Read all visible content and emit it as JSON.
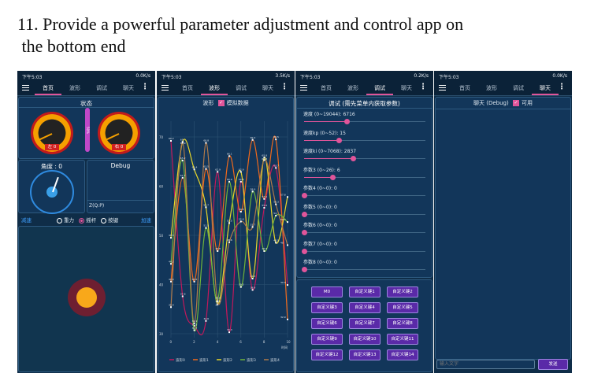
{
  "heading": {
    "line1": "11. Provide a powerful parameter adjustment and control app on",
    "line2": " the bottom end"
  },
  "tabs": [
    "首页",
    "波形",
    "调试",
    "聊天"
  ],
  "status_time": "下午5:03",
  "phones": {
    "home": {
      "net": "0.0K/s",
      "status_title": "状态",
      "left_gauge": "左 0",
      "right_gauge": "右 0",
      "bar_text": "50%",
      "angle_title": "角度 : 0",
      "debug_title": "Debug",
      "debug_text": "Z(Q:P)",
      "left_btn": "减速",
      "right_btn": "加速",
      "modes": [
        "重力",
        "摇杆",
        "按键"
      ],
      "selected_mode": 1
    },
    "wave": {
      "net": "3.5K/s",
      "title": "波形",
      "checkbox_label": "模拟数据",
      "checked": true
    },
    "debug": {
      "net": "0.2K/s",
      "title": "调试 (需先菜单内获取参数)",
      "params": [
        {
          "label": "速度 (0~19044): 6716",
          "value": 6716,
          "max": 19044
        },
        {
          "label": "速度kp (0~52): 15",
          "value": 15,
          "max": 52
        },
        {
          "label": "速度ki (0~7068): 2837",
          "value": 2837,
          "max": 7068
        },
        {
          "label": "参数3 (0~26): 6",
          "value": 6,
          "max": 26
        },
        {
          "label": "参数4 (0~0): 0",
          "value": 0,
          "max": 0
        },
        {
          "label": "参数5 (0~0): 0",
          "value": 0,
          "max": 0
        },
        {
          "label": "参数6 (0~0): 0",
          "value": 0,
          "max": 0
        },
        {
          "label": "参数7 (0~0): 0",
          "value": 0,
          "max": 0
        },
        {
          "label": "参数8 (0~0): 0",
          "value": 0,
          "max": 0
        }
      ],
      "buttons": [
        "M0",
        "自定义键1",
        "自定义键2",
        "自定义键3",
        "自定义键4",
        "自定义键5",
        "自定义键6",
        "自定义键7",
        "自定义键8",
        "自定义键9",
        "自定义键10",
        "自定义键11",
        "自定义键12",
        "自定义键13",
        "自定义键14"
      ]
    },
    "chat": {
      "net": "0.0K/s",
      "title": "聊天 (Debug)",
      "checkbox_label": "可用",
      "checked": true,
      "input_placeholder": "输入文字",
      "send": "发送"
    }
  },
  "chart_data": {
    "type": "line",
    "xlabel": "时间",
    "ylabel": "",
    "xlim": [
      0,
      10
    ],
    "ylim": [
      30,
      70
    ],
    "xticks": [
      0,
      2,
      4,
      6,
      8,
      10
    ],
    "yticks": [
      30,
      40,
      50,
      60,
      70
    ],
    "grid": true,
    "legend": "bottom",
    "x": [
      0,
      1,
      2,
      3,
      4,
      5,
      6,
      7,
      8,
      9,
      10
    ],
    "series": [
      {
        "name": "波形0",
        "color": "#c2185b",
        "values": [
          69.2,
          37.6,
          31.6,
          32.6,
          62.9,
          30.3,
          60.9,
          38.9,
          55.6,
          63.7,
          39.9
        ]
      },
      {
        "name": "波形1",
        "color": "#f26a1b",
        "values": [
          40.6,
          61.7,
          40.6,
          63.5,
          46.8,
          66.1,
          54.8,
          69.4,
          57.4,
          69.5,
          32.9
        ]
      },
      {
        "name": "波形2",
        "color": "#e8d72a",
        "values": [
          49.5,
          69.0,
          63.4,
          55.7,
          36.0,
          52.5,
          62.9,
          41.2,
          65.8,
          48.5,
          57.8
        ]
      },
      {
        "name": "波形3",
        "color": "#6fb43a",
        "values": [
          44.2,
          65.2,
          30.7,
          51.5,
          36.8,
          60.9,
          39.5,
          58.9,
          46.8,
          54.0,
          52.7
        ]
      },
      {
        "name": "波形4",
        "color": "#b07a4a",
        "values": [
          35.4,
          68.9,
          32.1,
          68.8,
          36.5,
          48.6,
          52.8,
          51.7,
          65.3,
          56.3,
          48.0
        ]
      }
    ]
  }
}
